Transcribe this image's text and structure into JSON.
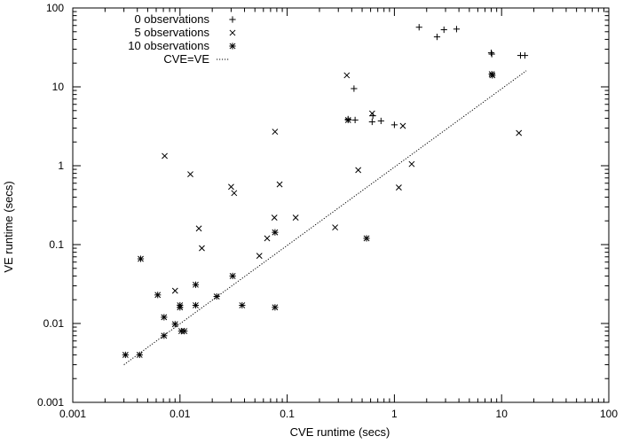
{
  "chart_data": {
    "type": "scatter",
    "title": "",
    "xlabel": "CVE runtime (secs)",
    "ylabel": "VE runtime (secs)",
    "xscale": "log",
    "yscale": "log",
    "xlim": [
      0.001,
      100
    ],
    "ylim": [
      0.001,
      100
    ],
    "x_tick_values": [
      0.001,
      0.01,
      0.1,
      1,
      10,
      100
    ],
    "x_tick_labels": [
      "0.001",
      "0.01",
      "0.1",
      "1",
      "10",
      "100"
    ],
    "y_tick_values": [
      0.001,
      0.01,
      0.1,
      1,
      10,
      100
    ],
    "y_tick_labels": [
      "0.001",
      "0.01",
      "0.1",
      "1",
      "10",
      "100"
    ],
    "grid": false,
    "legend_position": "top-left",
    "series": [
      {
        "name": "0 observations",
        "marker": "plus",
        "points": [
          [
            1.7,
            57
          ],
          [
            2.5,
            43
          ],
          [
            2.9,
            53
          ],
          [
            3.8,
            54
          ],
          [
            0.42,
            9.5
          ],
          [
            0.62,
            3.6
          ],
          [
            0.63,
            4.3
          ],
          [
            0.75,
            3.7
          ],
          [
            1.0,
            3.3
          ],
          [
            0.43,
            3.8
          ],
          [
            0.37,
            3.9
          ],
          [
            8.0,
            27
          ],
          [
            8.1,
            26
          ],
          [
            15,
            25
          ],
          [
            16.5,
            25
          ]
        ]
      },
      {
        "name": "5 observations",
        "marker": "cross",
        "points": [
          [
            0.36,
            14
          ],
          [
            0.62,
            4.6
          ],
          [
            1.2,
            3.2
          ],
          [
            0.46,
            0.88
          ],
          [
            1.45,
            1.05
          ],
          [
            1.1,
            0.53
          ],
          [
            0.077,
            2.7
          ],
          [
            0.0072,
            1.33
          ],
          [
            0.0125,
            0.78
          ],
          [
            0.03,
            0.54
          ],
          [
            0.032,
            0.45
          ],
          [
            0.085,
            0.58
          ],
          [
            0.076,
            0.22
          ],
          [
            0.12,
            0.22
          ],
          [
            0.015,
            0.16
          ],
          [
            0.016,
            0.09
          ],
          [
            0.065,
            0.12
          ],
          [
            0.055,
            0.072
          ],
          [
            0.28,
            0.165
          ],
          [
            0.009,
            0.026
          ],
          [
            14.5,
            2.6
          ]
        ]
      },
      {
        "name": "10 observations",
        "marker": "asterisk",
        "points": [
          [
            0.0043,
            0.066
          ],
          [
            0.0062,
            0.023
          ],
          [
            0.0071,
            0.012
          ],
          [
            0.0071,
            0.007
          ],
          [
            0.009,
            0.0098
          ],
          [
            0.01,
            0.017
          ],
          [
            0.01,
            0.016
          ],
          [
            0.0103,
            0.008
          ],
          [
            0.011,
            0.008
          ],
          [
            0.014,
            0.031
          ],
          [
            0.014,
            0.017
          ],
          [
            0.022,
            0.022
          ],
          [
            0.031,
            0.04
          ],
          [
            0.038,
            0.017
          ],
          [
            0.077,
            0.143
          ],
          [
            0.077,
            0.016
          ],
          [
            0.0031,
            0.004
          ],
          [
            0.0042,
            0.004
          ],
          [
            0.55,
            0.12
          ],
          [
            0.37,
            3.8
          ],
          [
            8.1,
            14.5
          ],
          [
            8.2,
            14
          ]
        ]
      },
      {
        "name": "CVE=VE",
        "marker": "dotted-line",
        "line": [
          [
            0.003,
            0.003
          ],
          [
            17,
            16
          ]
        ]
      }
    ]
  }
}
